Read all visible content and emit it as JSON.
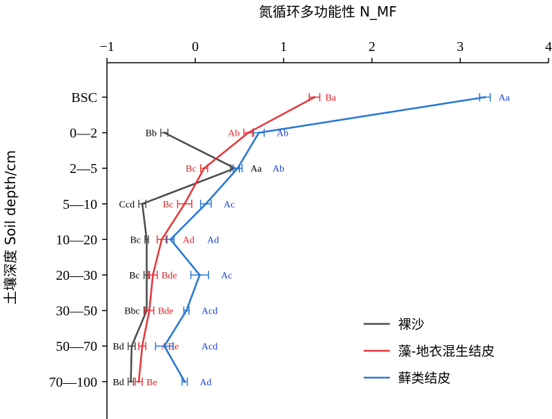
{
  "chart_data": {
    "type": "line",
    "orientation": "horizontal-values",
    "xlabel": "氮循环多功能性 N_MF",
    "ylabel": "土壤深度 Soil depth/cm",
    "xlim": [
      -1,
      4
    ],
    "xticks": [
      -1,
      0,
      1,
      2,
      3,
      4
    ],
    "xtick_labels": [
      "−1",
      "0",
      "1",
      "2",
      "3",
      "4"
    ],
    "categories": [
      "BSC",
      "0—2",
      "2—5",
      "5—10",
      "10—20",
      "20—30",
      "30—50",
      "50—70",
      "70—100"
    ],
    "grid": false,
    "legend_position": "bottom-right",
    "series": [
      {
        "name": "裸沙",
        "color": "#4d4d4d",
        "values": [
          null,
          -0.35,
          0.45,
          -0.6,
          -0.55,
          -0.55,
          -0.55,
          -0.72,
          -0.73
        ],
        "errors": [
          null,
          0.04,
          0.05,
          0.04,
          0.02,
          0.03,
          0.03,
          0.04,
          0.03
        ],
        "labels": [
          "",
          "Bb",
          "Aa",
          "Ccd",
          "Bc",
          "Bc",
          "Bbc",
          "Bd",
          "Bd"
        ]
      },
      {
        "name": "藻-地衣混生结皮",
        "color": "#e8373c",
        "values": [
          1.35,
          0.6,
          0.1,
          -0.12,
          -0.38,
          -0.48,
          -0.52,
          -0.6,
          -0.64
        ],
        "errors": [
          0.06,
          0.05,
          0.04,
          0.08,
          0.05,
          0.05,
          0.05,
          0.04,
          0.04
        ],
        "labels": [
          "Ba",
          "Ab",
          "Bc",
          "Bc",
          "Ad",
          "Bde",
          "Bde",
          "ABe",
          "Be"
        ]
      },
      {
        "name": "藓类结皮",
        "color": "#2878d6",
        "values": [
          3.28,
          0.72,
          0.48,
          0.12,
          -0.28,
          0.05,
          -0.1,
          -0.35,
          -0.12
        ],
        "errors": [
          0.06,
          0.06,
          0.05,
          0.06,
          0.04,
          0.1,
          0.03,
          0.1,
          0.03
        ],
        "labels": [
          "Aa",
          "Ab",
          "Ab",
          "Ac",
          "Ad",
          "Ac",
          "Acd",
          "Acd",
          "Ad"
        ]
      }
    ]
  }
}
